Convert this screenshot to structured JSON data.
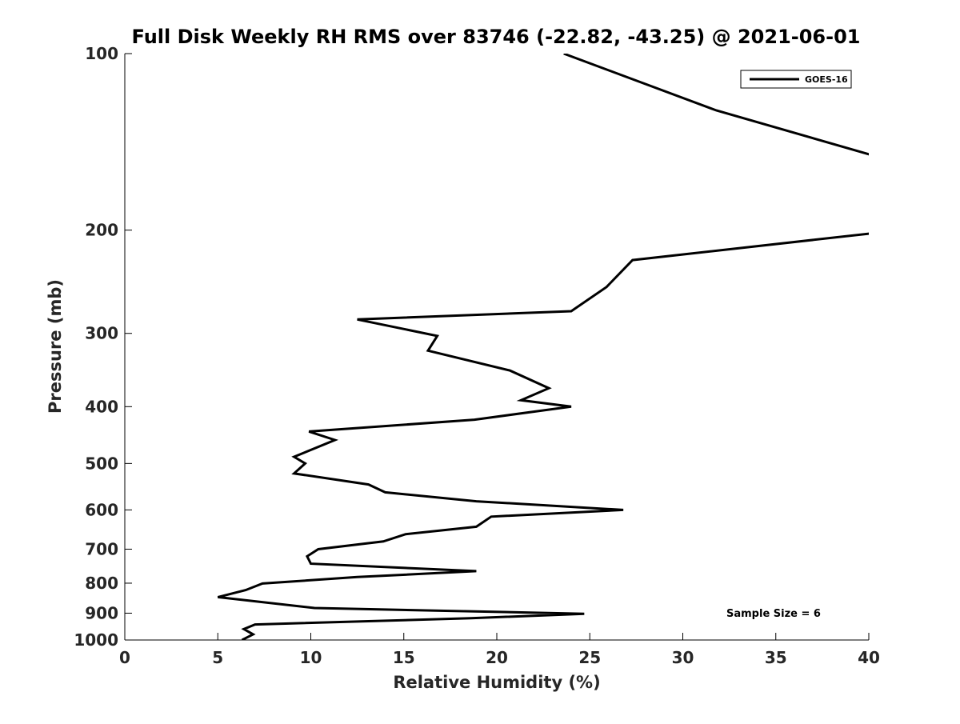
{
  "chart_data": {
    "type": "line",
    "title": "Full Disk Weekly RH RMS over 83746 (-22.82, -43.25) @ 2021-06-01",
    "xlabel": "Relative Humidity (%)",
    "ylabel": "Pressure (mb)",
    "xlim": [
      0,
      40
    ],
    "ylim": [
      100,
      1000
    ],
    "y_scale": "log",
    "y_reversed": true,
    "x_ticks": [
      "0",
      "5",
      "10",
      "15",
      "20",
      "25",
      "30",
      "35",
      "40"
    ],
    "y_ticks": [
      "100",
      "200",
      "300",
      "400",
      "500",
      "600",
      "700",
      "800",
      "900",
      "1000"
    ],
    "grid": false,
    "legend_position": "top-right",
    "annotation": "Sample Size = 6",
    "series": [
      {
        "name": "GOES-16",
        "color": "#000000",
        "points": [
          [
            23.6,
            100
          ],
          [
            31.8,
            125
          ],
          [
            40.5,
            150
          ],
          [
            40.5,
            202
          ],
          [
            27.3,
            225
          ],
          [
            25.9,
            250
          ],
          [
            24.0,
            275
          ],
          [
            12.5,
            284
          ],
          [
            16.8,
            303
          ],
          [
            16.3,
            321
          ],
          [
            20.7,
            347
          ],
          [
            22.8,
            372
          ],
          [
            21.3,
            390
          ],
          [
            24.0,
            400
          ],
          [
            18.8,
            421
          ],
          [
            9.9,
            441
          ],
          [
            11.3,
            456
          ],
          [
            9.1,
            487
          ],
          [
            9.7,
            500
          ],
          [
            9.1,
            520
          ],
          [
            13.1,
            543
          ],
          [
            14.0,
            560
          ],
          [
            18.9,
            580
          ],
          [
            26.8,
            600
          ],
          [
            19.7,
            616
          ],
          [
            18.9,
            641
          ],
          [
            15.1,
            660
          ],
          [
            13.9,
            679
          ],
          [
            10.4,
            700
          ],
          [
            9.8,
            720
          ],
          [
            10.0,
            741
          ],
          [
            18.9,
            763
          ],
          [
            12.5,
            781
          ],
          [
            7.4,
            801
          ],
          [
            6.5,
            822
          ],
          [
            5.0,
            845
          ],
          [
            10.2,
            882
          ],
          [
            24.7,
            902
          ],
          [
            18.6,
            918
          ],
          [
            7.0,
            941
          ],
          [
            6.4,
            958
          ],
          [
            6.9,
            978
          ],
          [
            6.3,
            1000
          ]
        ]
      }
    ]
  }
}
